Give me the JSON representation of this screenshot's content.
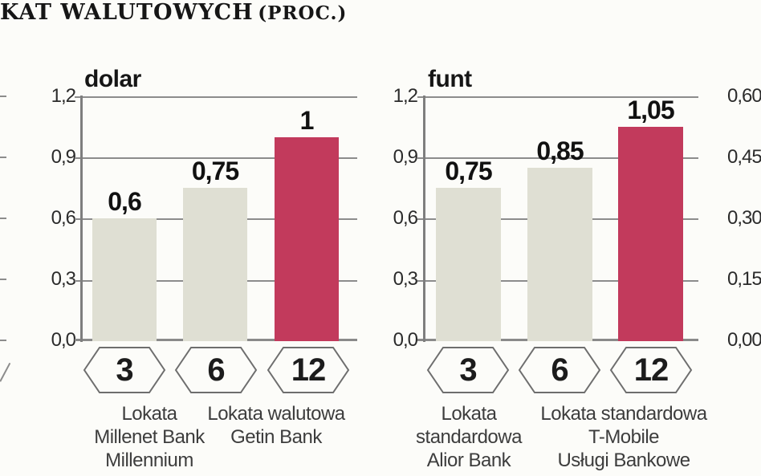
{
  "header": {
    "title_main": "KAT WALUTOWYCH",
    "title_paren": "(PROC.)"
  },
  "colors": {
    "bar": "#dfdfd3",
    "bar_highlight": "#c23a5c",
    "grid": "#8c8c8c",
    "heading": "#161616",
    "footnote_text": "#3d3d3d"
  },
  "chart_data": [
    {
      "type": "bar",
      "title": "dolar",
      "categories": [
        "3",
        "6",
        "12"
      ],
      "values": [
        0.6,
        0.75,
        1.0
      ],
      "value_labels": [
        "0,6",
        "0,75",
        "1"
      ],
      "ylim": [
        0,
        1.2
      ],
      "yticks": [
        "1,2",
        "0,9",
        "0,6",
        "0,3",
        "0,0"
      ],
      "highlight_index": 2,
      "grid": true,
      "legend": "none",
      "footnotes": [
        {
          "lines": [
            "Lokata",
            "Millenet Bank",
            "Millennium"
          ]
        },
        {
          "lines": [
            "Lokata walutowa",
            "Getin Bank"
          ]
        }
      ]
    },
    {
      "type": "bar",
      "title": "funt",
      "categories": [
        "3",
        "6",
        "12"
      ],
      "values": [
        0.75,
        0.85,
        1.05
      ],
      "value_labels": [
        "0,75",
        "0,85",
        "1,05"
      ],
      "ylim": [
        0,
        1.2
      ],
      "yticks": [
        "1,2",
        "0,9",
        "0,6",
        "0,3",
        "0,0"
      ],
      "highlight_index": 2,
      "grid": true,
      "legend": "none",
      "footnotes": [
        {
          "lines": [
            "Lokata",
            "standardowa",
            "Alior Bank"
          ]
        },
        {
          "lines": [
            "Lokata standardowa",
            "T-Mobile",
            "Usługi Bankowe"
          ]
        }
      ]
    },
    {
      "type": "bar",
      "title": "",
      "partial": true,
      "values": [],
      "ylim": [
        0,
        0.6
      ],
      "yticks": [
        "0,60",
        "0,45",
        "0,30",
        "0,15",
        "0,00"
      ]
    }
  ]
}
